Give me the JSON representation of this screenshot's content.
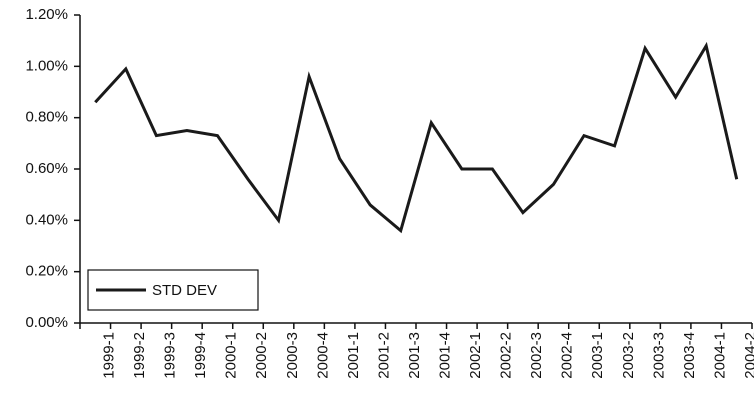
{
  "chart_data": {
    "type": "line",
    "categories": [
      "1999-1",
      "1999-2",
      "1999-3",
      "1999-4",
      "2000-1",
      "2000-2",
      "2000-3",
      "2000-4",
      "2001-1",
      "2001-2",
      "2001-3",
      "2001-4",
      "2002-1",
      "2002-2",
      "2002-3",
      "2002-4",
      "2003-1",
      "2003-2",
      "2003-3",
      "2003-4",
      "2004-1",
      "2004-2"
    ],
    "series": [
      {
        "name": "STD DEV",
        "color": "#1a1a1a",
        "values": [
          0.86,
          0.99,
          0.73,
          0.75,
          0.73,
          0.56,
          0.4,
          0.96,
          0.64,
          0.46,
          0.36,
          0.78,
          0.6,
          0.6,
          0.43,
          0.54,
          0.73,
          0.69,
          1.07,
          0.88,
          1.08,
          0.56
        ]
      }
    ],
    "ylim": [
      0,
      1.2
    ],
    "yticks": [
      {
        "value": 0,
        "label": "0.00%"
      },
      {
        "value": 0.2,
        "label": "0.20%"
      },
      {
        "value": 0.4,
        "label": "0.40%"
      },
      {
        "value": 0.6,
        "label": "0.60%"
      },
      {
        "value": 0.8,
        "label": "0.80%"
      },
      {
        "value": 1.0,
        "label": "1.00%"
      },
      {
        "value": 1.2,
        "label": "1.20%"
      }
    ],
    "legend": "lower left"
  }
}
